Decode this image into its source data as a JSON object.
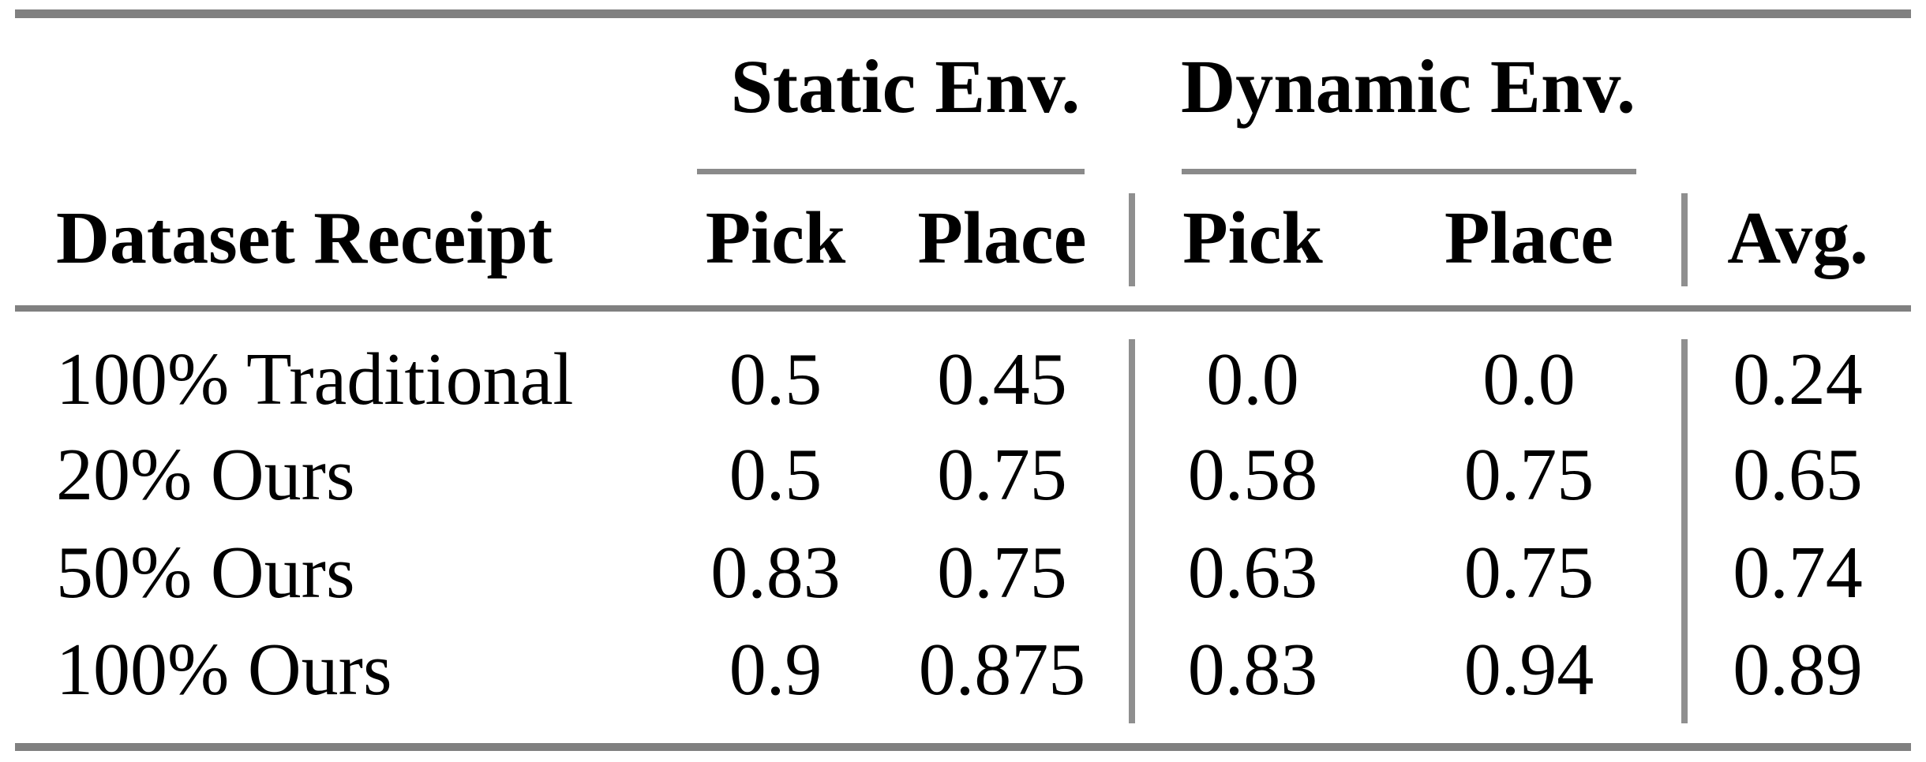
{
  "table": {
    "group_headers": [
      {
        "label": "Static Env.",
        "span": [
          "Pick",
          "Place"
        ]
      },
      {
        "label": "Dynamic Env.",
        "span": [
          "Pick",
          "Place"
        ]
      }
    ],
    "columns": {
      "dataset": "Dataset Receipt",
      "static_pick": "Pick",
      "static_place": "Place",
      "dynamic_pick": "Pick",
      "dynamic_place": "Place",
      "avg": "Avg."
    },
    "rows": [
      {
        "label": "100% Traditional",
        "static_pick": "0.5",
        "static_place": "0.45",
        "dynamic_pick": "0.0",
        "dynamic_place": "0.0",
        "avg": "0.24"
      },
      {
        "label": "20% Ours",
        "static_pick": "0.5",
        "static_place": "0.75",
        "dynamic_pick": "0.58",
        "dynamic_place": "0.75",
        "avg": "0.65"
      },
      {
        "label": "50% Ours",
        "static_pick": "0.83",
        "static_place": "0.75",
        "dynamic_pick": "0.63",
        "dynamic_place": "0.75",
        "avg": "0.74"
      },
      {
        "label": "100% Ours",
        "static_pick": "0.9",
        "static_place": "0.875",
        "dynamic_pick": "0.83",
        "dynamic_place": "0.94",
        "avg": "0.89"
      }
    ],
    "colors": {
      "rule": "#808080",
      "divider": "#8f8f8f",
      "text": "#000000",
      "background": "#ffffff"
    }
  }
}
